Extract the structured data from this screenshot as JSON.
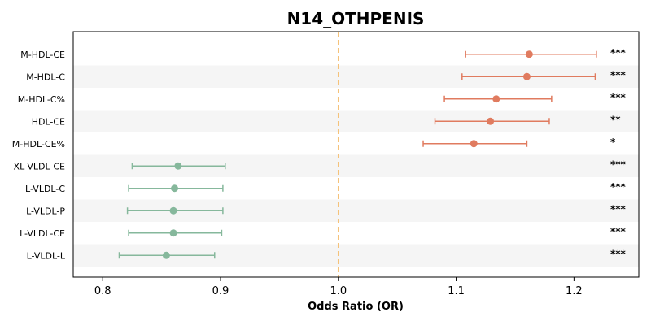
{
  "chart_data": {
    "type": "forest",
    "title": "N14_OTHPENIS",
    "xlabel": "Odds Ratio (OR)",
    "xlim": [
      0.775,
      1.255
    ],
    "xticks": [
      0.8,
      0.9,
      1.0,
      1.1,
      1.2
    ],
    "xtick_labels": [
      "0.8",
      "0.9",
      "1.0",
      "1.1",
      "1.2"
    ],
    "reference_line": 1.0,
    "colors": {
      "positive": "#e07b5f",
      "negative": "#86b89c",
      "reference": "#f5c27a",
      "band": "#f5f5f5"
    },
    "rows": [
      {
        "label": "M-HDL-CE",
        "or": 1.162,
        "lower": 1.108,
        "upper": 1.219,
        "sig": "***",
        "group": "positive"
      },
      {
        "label": "M-HDL-C",
        "or": 1.16,
        "lower": 1.105,
        "upper": 1.218,
        "sig": "***",
        "group": "positive"
      },
      {
        "label": "M-HDL-C%",
        "or": 1.134,
        "lower": 1.09,
        "upper": 1.181,
        "sig": "***",
        "group": "positive"
      },
      {
        "label": "HDL-CE",
        "or": 1.129,
        "lower": 1.082,
        "upper": 1.179,
        "sig": "**",
        "group": "positive"
      },
      {
        "label": "M-HDL-CE%",
        "or": 1.115,
        "lower": 1.072,
        "upper": 1.16,
        "sig": "*",
        "group": "positive"
      },
      {
        "label": "XL-VLDL-CE",
        "or": 0.864,
        "lower": 0.825,
        "upper": 0.904,
        "sig": "***",
        "group": "negative"
      },
      {
        "label": "L-VLDL-C",
        "or": 0.861,
        "lower": 0.822,
        "upper": 0.902,
        "sig": "***",
        "group": "negative"
      },
      {
        "label": "L-VLDL-P",
        "or": 0.86,
        "lower": 0.821,
        "upper": 0.902,
        "sig": "***",
        "group": "negative"
      },
      {
        "label": "L-VLDL-CE",
        "or": 0.86,
        "lower": 0.822,
        "upper": 0.901,
        "sig": "***",
        "group": "negative"
      },
      {
        "label": "L-VLDL-L",
        "or": 0.854,
        "lower": 0.814,
        "upper": 0.895,
        "sig": "***",
        "group": "negative"
      }
    ]
  }
}
